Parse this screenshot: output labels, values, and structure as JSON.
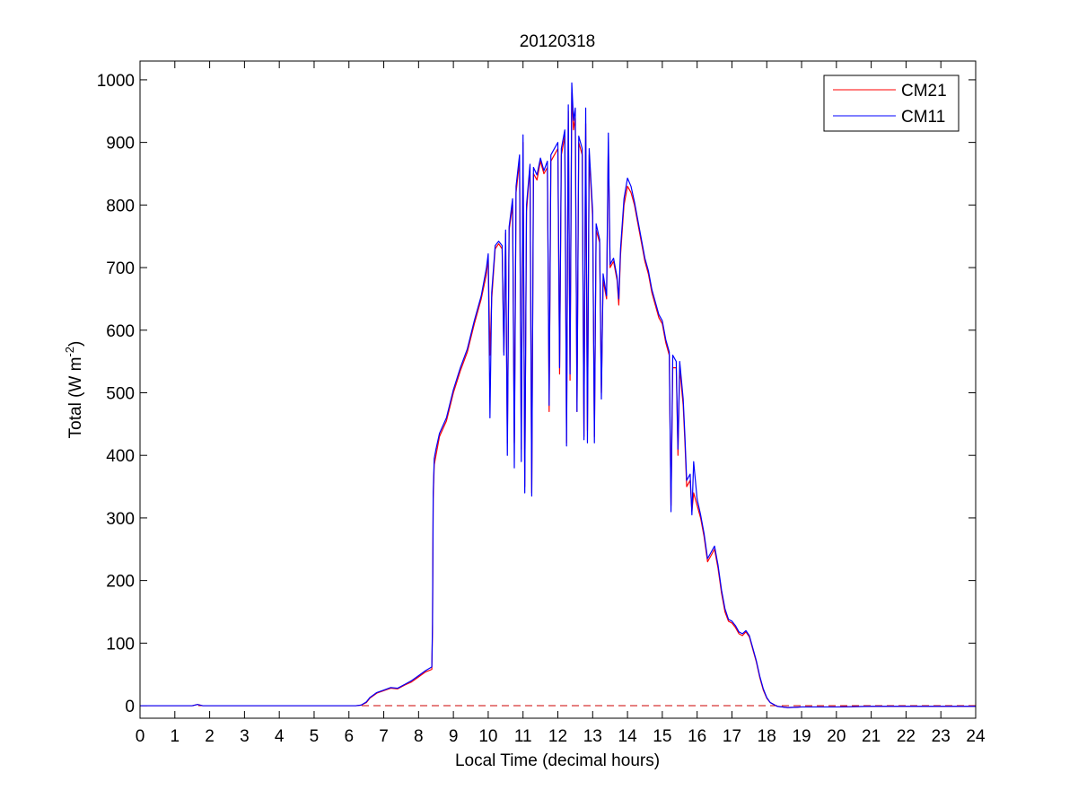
{
  "chart_data": {
    "type": "line",
    "title": "20120318",
    "xlabel": "Local Time (decimal hours)",
    "ylabel_main": "Total (W m",
    "ylabel_exp": "-2",
    "ylabel_close": ")",
    "xlim": [
      0,
      24
    ],
    "ylim": [
      -20,
      1030
    ],
    "x_ticks": [
      0,
      1,
      2,
      3,
      4,
      5,
      6,
      7,
      8,
      9,
      10,
      11,
      12,
      13,
      14,
      15,
      16,
      17,
      18,
      19,
      20,
      21,
      22,
      23,
      24
    ],
    "y_ticks": [
      0,
      100,
      200,
      300,
      400,
      500,
      600,
      700,
      800,
      900,
      1000
    ],
    "grid": false,
    "legend_position": "top-right",
    "reference_line": {
      "y": 0,
      "color": "#cc0000",
      "style": "dashed"
    },
    "series": [
      {
        "name": "CM21",
        "color": "#ff0000",
        "points": [
          [
            0,
            0
          ],
          [
            1.5,
            0
          ],
          [
            1.65,
            2
          ],
          [
            1.8,
            0
          ],
          [
            6.2,
            0
          ],
          [
            6.35,
            1
          ],
          [
            6.5,
            5
          ],
          [
            6.6,
            12
          ],
          [
            6.8,
            20
          ],
          [
            7.0,
            24
          ],
          [
            7.2,
            28
          ],
          [
            7.4,
            27
          ],
          [
            7.6,
            33
          ],
          [
            7.8,
            38
          ],
          [
            8.0,
            46
          ],
          [
            8.2,
            54
          ],
          [
            8.38,
            58
          ],
          [
            8.4,
            120
          ],
          [
            8.42,
            330
          ],
          [
            8.45,
            385
          ],
          [
            8.5,
            400
          ],
          [
            8.6,
            430
          ],
          [
            8.8,
            455
          ],
          [
            9.0,
            500
          ],
          [
            9.2,
            535
          ],
          [
            9.4,
            565
          ],
          [
            9.6,
            610
          ],
          [
            9.8,
            650
          ],
          [
            9.95,
            690
          ],
          [
            10.0,
            715
          ],
          [
            10.05,
            560
          ],
          [
            10.1,
            650
          ],
          [
            10.2,
            730
          ],
          [
            10.3,
            738
          ],
          [
            10.4,
            730
          ],
          [
            10.45,
            565
          ],
          [
            10.5,
            755
          ],
          [
            10.55,
            420
          ],
          [
            10.6,
            760
          ],
          [
            10.7,
            800
          ],
          [
            10.75,
            420
          ],
          [
            10.8,
            820
          ],
          [
            10.9,
            870
          ],
          [
            10.95,
            410
          ],
          [
            11.0,
            900
          ],
          [
            11.05,
            350
          ],
          [
            11.1,
            790
          ],
          [
            11.2,
            860
          ],
          [
            11.25,
            340
          ],
          [
            11.3,
            850
          ],
          [
            11.4,
            840
          ],
          [
            11.5,
            870
          ],
          [
            11.6,
            850
          ],
          [
            11.7,
            860
          ],
          [
            11.75,
            470
          ],
          [
            11.8,
            870
          ],
          [
            11.9,
            880
          ],
          [
            12.0,
            890
          ],
          [
            12.05,
            530
          ],
          [
            12.1,
            880
          ],
          [
            12.2,
            910
          ],
          [
            12.25,
            420
          ],
          [
            12.3,
            950
          ],
          [
            12.35,
            520
          ],
          [
            12.4,
            980
          ],
          [
            12.45,
            920
          ],
          [
            12.5,
            940
          ],
          [
            12.55,
            470
          ],
          [
            12.6,
            900
          ],
          [
            12.7,
            880
          ],
          [
            12.75,
            430
          ],
          [
            12.8,
            930
          ],
          [
            12.85,
            440
          ],
          [
            12.9,
            880
          ],
          [
            13.0,
            780
          ],
          [
            13.05,
            430
          ],
          [
            13.1,
            760
          ],
          [
            13.2,
            740
          ],
          [
            13.25,
            500
          ],
          [
            13.3,
            680
          ],
          [
            13.4,
            650
          ],
          [
            13.45,
            900
          ],
          [
            13.5,
            700
          ],
          [
            13.6,
            710
          ],
          [
            13.7,
            680
          ],
          [
            13.75,
            640
          ],
          [
            13.8,
            720
          ],
          [
            13.9,
            800
          ],
          [
            14.0,
            830
          ],
          [
            14.1,
            820
          ],
          [
            14.2,
            800
          ],
          [
            14.3,
            770
          ],
          [
            14.4,
            740
          ],
          [
            14.5,
            710
          ],
          [
            14.6,
            690
          ],
          [
            14.7,
            660
          ],
          [
            14.8,
            640
          ],
          [
            14.9,
            620
          ],
          [
            15.0,
            610
          ],
          [
            15.1,
            580
          ],
          [
            15.2,
            560
          ],
          [
            15.25,
            320
          ],
          [
            15.3,
            540
          ],
          [
            15.4,
            540
          ],
          [
            15.45,
            400
          ],
          [
            15.5,
            540
          ],
          [
            15.6,
            480
          ],
          [
            15.65,
            420
          ],
          [
            15.7,
            350
          ],
          [
            15.8,
            360
          ],
          [
            15.85,
            310
          ],
          [
            15.9,
            340
          ],
          [
            16.0,
            320
          ],
          [
            16.1,
            300
          ],
          [
            16.2,
            270
          ],
          [
            16.3,
            230
          ],
          [
            16.4,
            240
          ],
          [
            16.5,
            250
          ],
          [
            16.6,
            220
          ],
          [
            16.7,
            180
          ],
          [
            16.8,
            150
          ],
          [
            16.9,
            135
          ],
          [
            17.0,
            132
          ],
          [
            17.1,
            125
          ],
          [
            17.2,
            115
          ],
          [
            17.3,
            112
          ],
          [
            17.4,
            118
          ],
          [
            17.5,
            110
          ],
          [
            17.6,
            90
          ],
          [
            17.7,
            70
          ],
          [
            17.8,
            45
          ],
          [
            17.9,
            25
          ],
          [
            18.0,
            12
          ],
          [
            18.1,
            5
          ],
          [
            18.3,
            -1
          ],
          [
            18.6,
            -3
          ],
          [
            19.0,
            -2
          ],
          [
            20.0,
            -2
          ],
          [
            21.0,
            -1
          ],
          [
            22.0,
            -1
          ],
          [
            24,
            -1
          ]
        ]
      },
      {
        "name": "CM11",
        "color": "#0000ff",
        "points": [
          [
            0,
            0
          ],
          [
            1.5,
            0
          ],
          [
            1.65,
            2
          ],
          [
            1.8,
            0
          ],
          [
            6.2,
            0
          ],
          [
            6.35,
            1
          ],
          [
            6.5,
            6
          ],
          [
            6.6,
            13
          ],
          [
            6.8,
            21
          ],
          [
            7.0,
            25
          ],
          [
            7.2,
            29
          ],
          [
            7.4,
            28
          ],
          [
            7.6,
            34
          ],
          [
            7.8,
            40
          ],
          [
            8.0,
            48
          ],
          [
            8.2,
            56
          ],
          [
            8.38,
            62
          ],
          [
            8.4,
            130
          ],
          [
            8.42,
            340
          ],
          [
            8.45,
            395
          ],
          [
            8.5,
            410
          ],
          [
            8.6,
            435
          ],
          [
            8.8,
            460
          ],
          [
            9.0,
            505
          ],
          [
            9.2,
            540
          ],
          [
            9.4,
            570
          ],
          [
            9.6,
            615
          ],
          [
            9.8,
            655
          ],
          [
            9.95,
            700
          ],
          [
            10.0,
            722
          ],
          [
            10.05,
            460
          ],
          [
            10.1,
            660
          ],
          [
            10.2,
            735
          ],
          [
            10.3,
            742
          ],
          [
            10.4,
            735
          ],
          [
            10.45,
            560
          ],
          [
            10.5,
            760
          ],
          [
            10.55,
            400
          ],
          [
            10.6,
            765
          ],
          [
            10.7,
            810
          ],
          [
            10.75,
            380
          ],
          [
            10.8,
            830
          ],
          [
            10.9,
            880
          ],
          [
            10.95,
            390
          ],
          [
            11.0,
            912
          ],
          [
            11.05,
            340
          ],
          [
            11.1,
            800
          ],
          [
            11.2,
            865
          ],
          [
            11.25,
            335
          ],
          [
            11.3,
            860
          ],
          [
            11.4,
            848
          ],
          [
            11.5,
            875
          ],
          [
            11.6,
            855
          ],
          [
            11.7,
            870
          ],
          [
            11.75,
            480
          ],
          [
            11.8,
            880
          ],
          [
            11.9,
            890
          ],
          [
            12.0,
            900
          ],
          [
            12.05,
            540
          ],
          [
            12.1,
            890
          ],
          [
            12.2,
            920
          ],
          [
            12.25,
            415
          ],
          [
            12.3,
            960
          ],
          [
            12.35,
            530
          ],
          [
            12.4,
            995
          ],
          [
            12.45,
            935
          ],
          [
            12.5,
            955
          ],
          [
            12.55,
            470
          ],
          [
            12.6,
            910
          ],
          [
            12.7,
            890
          ],
          [
            12.75,
            425
          ],
          [
            12.8,
            955
          ],
          [
            12.85,
            420
          ],
          [
            12.9,
            890
          ],
          [
            13.0,
            790
          ],
          [
            13.05,
            420
          ],
          [
            13.1,
            770
          ],
          [
            13.2,
            745
          ],
          [
            13.25,
            490
          ],
          [
            13.3,
            690
          ],
          [
            13.4,
            655
          ],
          [
            13.45,
            915
          ],
          [
            13.5,
            705
          ],
          [
            13.6,
            715
          ],
          [
            13.7,
            685
          ],
          [
            13.75,
            650
          ],
          [
            13.8,
            730
          ],
          [
            13.9,
            810
          ],
          [
            14.0,
            843
          ],
          [
            14.1,
            830
          ],
          [
            14.2,
            805
          ],
          [
            14.3,
            775
          ],
          [
            14.4,
            745
          ],
          [
            14.5,
            715
          ],
          [
            14.6,
            695
          ],
          [
            14.7,
            665
          ],
          [
            14.8,
            645
          ],
          [
            14.9,
            625
          ],
          [
            15.0,
            615
          ],
          [
            15.1,
            585
          ],
          [
            15.2,
            565
          ],
          [
            15.25,
            310
          ],
          [
            15.3,
            560
          ],
          [
            15.4,
            550
          ],
          [
            15.45,
            410
          ],
          [
            15.5,
            550
          ],
          [
            15.6,
            490
          ],
          [
            15.65,
            430
          ],
          [
            15.7,
            360
          ],
          [
            15.8,
            370
          ],
          [
            15.85,
            305
          ],
          [
            15.9,
            390
          ],
          [
            16.0,
            330
          ],
          [
            16.1,
            305
          ],
          [
            16.2,
            275
          ],
          [
            16.3,
            235
          ],
          [
            16.4,
            245
          ],
          [
            16.5,
            255
          ],
          [
            16.6,
            225
          ],
          [
            16.7,
            185
          ],
          [
            16.8,
            155
          ],
          [
            16.9,
            138
          ],
          [
            17.0,
            135
          ],
          [
            17.1,
            128
          ],
          [
            17.2,
            118
          ],
          [
            17.3,
            115
          ],
          [
            17.4,
            120
          ],
          [
            17.5,
            112
          ],
          [
            17.6,
            92
          ],
          [
            17.7,
            72
          ],
          [
            17.8,
            47
          ],
          [
            17.9,
            27
          ],
          [
            18.0,
            13
          ],
          [
            18.1,
            5
          ],
          [
            18.3,
            -1
          ],
          [
            18.6,
            -3
          ],
          [
            19.0,
            -2
          ],
          [
            20.0,
            -2
          ],
          [
            21.0,
            -1
          ],
          [
            22.0,
            -1
          ],
          [
            24,
            -1
          ]
        ]
      }
    ]
  }
}
